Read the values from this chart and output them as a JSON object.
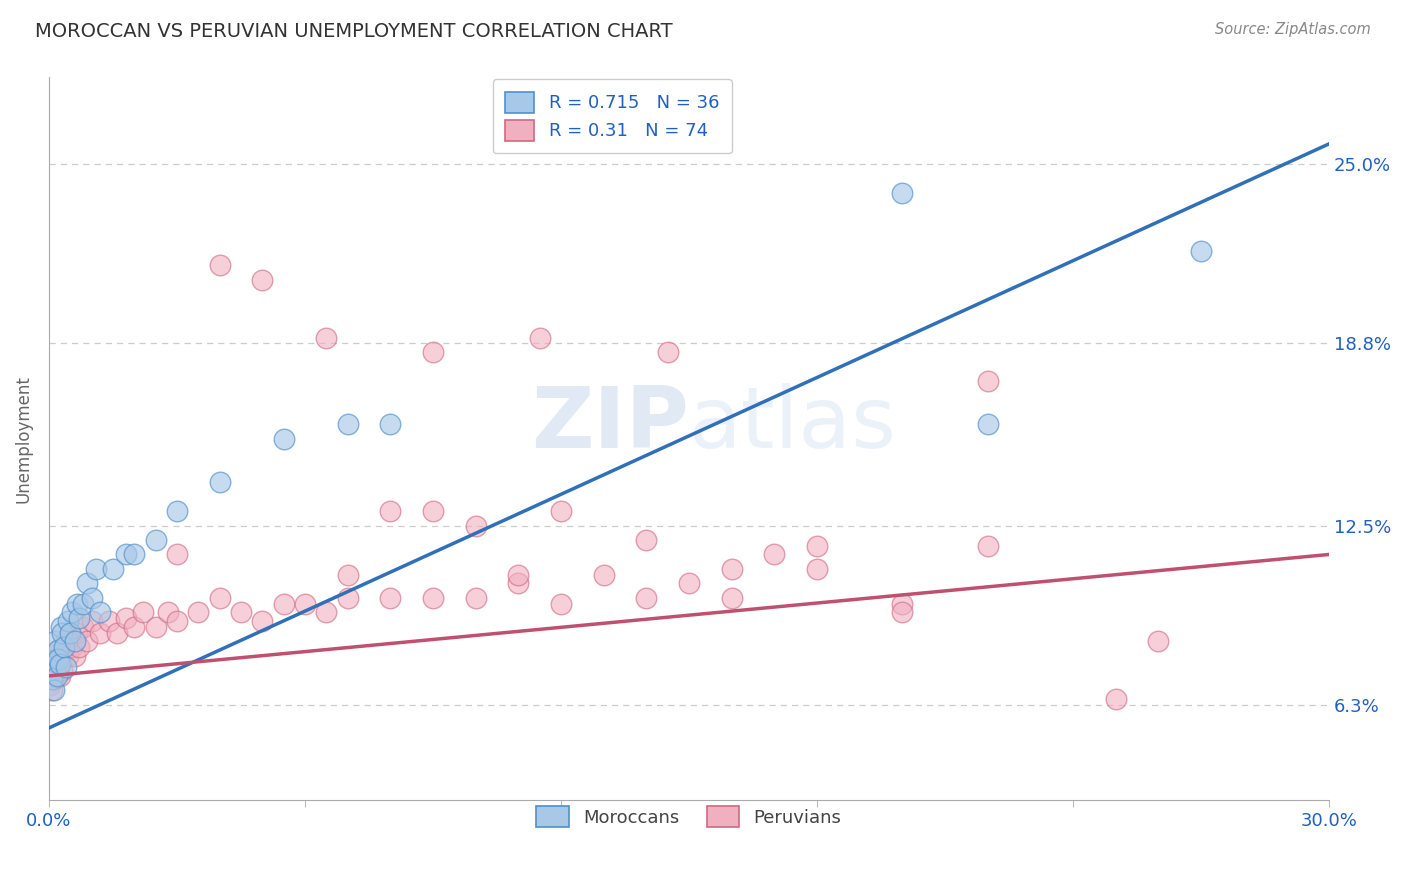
{
  "title": "MOROCCAN VS PERUVIAN UNEMPLOYMENT CORRELATION CHART",
  "source": "Source: ZipAtlas.com",
  "ylabel": "Unemployment",
  "xlim": [
    0,
    30
  ],
  "ylim": [
    0.03,
    0.28
  ],
  "yticks": [
    0.063,
    0.125,
    0.188,
    0.25
  ],
  "ytick_labels": [
    "6.3%",
    "12.5%",
    "18.8%",
    "25.0%"
  ],
  "xtick_vals": [
    0,
    6,
    12,
    18,
    24,
    30
  ],
  "xtick_labels": [
    "0.0%",
    "",
    "",
    "",
    "",
    "30.0%"
  ],
  "moroccan_R": 0.715,
  "moroccan_N": 36,
  "peruvian_R": 0.31,
  "peruvian_N": 74,
  "blue_fill": "#a8c8e8",
  "blue_edge": "#5090c8",
  "blue_line": "#3070b8",
  "pink_fill": "#f0b0c0",
  "pink_edge": "#d06880",
  "pink_line": "#c05070",
  "accent_color": "#2060c0",
  "grid_color": "#cccccc",
  "bg_color": "#ffffff",
  "blue_line_x0": 0,
  "blue_line_y0": 0.055,
  "blue_line_x1": 30,
  "blue_line_y1": 0.257,
  "pink_line_x0": 0,
  "pink_line_y0": 0.073,
  "pink_line_x1": 30,
  "pink_line_y1": 0.115,
  "moroccan_x": [
    0.05,
    0.08,
    0.1,
    0.12,
    0.15,
    0.18,
    0.2,
    0.22,
    0.25,
    0.28,
    0.3,
    0.35,
    0.4,
    0.45,
    0.5,
    0.55,
    0.6,
    0.65,
    0.7,
    0.8,
    0.9,
    1.0,
    1.1,
    1.2,
    1.5,
    1.8,
    2.0,
    2.5,
    3.0,
    4.0,
    5.5,
    7.0,
    8.0,
    20.0,
    22.0,
    27.0
  ],
  "moroccan_y": [
    0.075,
    0.072,
    0.078,
    0.068,
    0.085,
    0.073,
    0.082,
    0.079,
    0.077,
    0.09,
    0.088,
    0.083,
    0.076,
    0.092,
    0.088,
    0.095,
    0.085,
    0.098,
    0.093,
    0.098,
    0.105,
    0.1,
    0.11,
    0.095,
    0.11,
    0.115,
    0.115,
    0.12,
    0.13,
    0.14,
    0.155,
    0.16,
    0.16,
    0.24,
    0.16,
    0.22
  ],
  "peruvian_x": [
    0.02,
    0.04,
    0.06,
    0.08,
    0.1,
    0.12,
    0.15,
    0.18,
    0.2,
    0.22,
    0.25,
    0.28,
    0.3,
    0.35,
    0.4,
    0.45,
    0.5,
    0.55,
    0.6,
    0.65,
    0.7,
    0.8,
    0.9,
    1.0,
    1.2,
    1.4,
    1.6,
    1.8,
    2.0,
    2.2,
    2.5,
    2.8,
    3.0,
    3.5,
    4.0,
    4.5,
    5.0,
    5.5,
    6.0,
    6.5,
    7.0,
    8.0,
    9.0,
    10.0,
    11.0,
    12.0,
    13.0,
    14.0,
    15.0,
    16.0,
    18.0,
    20.0,
    25.0,
    4.0,
    6.5,
    9.0,
    11.5,
    14.5,
    18.0,
    22.0,
    5.0,
    3.0,
    8.0,
    10.0,
    14.0,
    12.0,
    9.0,
    17.0,
    22.0,
    26.0,
    7.0,
    11.0,
    16.0,
    20.0
  ],
  "peruvian_y": [
    0.07,
    0.075,
    0.068,
    0.073,
    0.078,
    0.072,
    0.08,
    0.075,
    0.082,
    0.078,
    0.073,
    0.08,
    0.075,
    0.082,
    0.085,
    0.08,
    0.088,
    0.083,
    0.08,
    0.088,
    0.083,
    0.09,
    0.085,
    0.092,
    0.088,
    0.092,
    0.088,
    0.093,
    0.09,
    0.095,
    0.09,
    0.095,
    0.092,
    0.095,
    0.1,
    0.095,
    0.092,
    0.098,
    0.098,
    0.095,
    0.1,
    0.1,
    0.1,
    0.1,
    0.105,
    0.098,
    0.108,
    0.1,
    0.105,
    0.1,
    0.11,
    0.098,
    0.065,
    0.215,
    0.19,
    0.185,
    0.19,
    0.185,
    0.118,
    0.175,
    0.21,
    0.115,
    0.13,
    0.125,
    0.12,
    0.13,
    0.13,
    0.115,
    0.118,
    0.085,
    0.108,
    0.108,
    0.11,
    0.095
  ]
}
